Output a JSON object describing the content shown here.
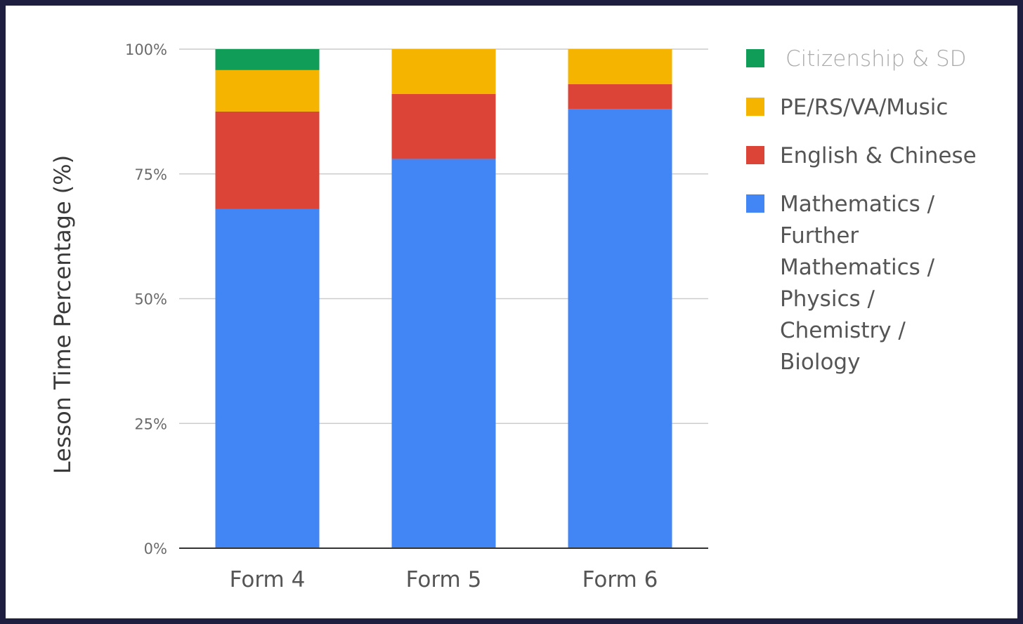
{
  "chart_data": {
    "type": "bar",
    "stacked": true,
    "title": "",
    "xlabel": "",
    "ylabel": "Lesson Time Percentage (%)",
    "ylim": [
      0,
      100
    ],
    "yticks": [
      0,
      25,
      50,
      75,
      100
    ],
    "ytick_labels": [
      "0%",
      "25%",
      "50%",
      "75%",
      "100%"
    ],
    "categories": [
      "Form 4",
      "Form 5",
      "Form 6"
    ],
    "grid": true,
    "legend_position": "right",
    "series": [
      {
        "name": "Mathematics / Further Mathematics / Physics / Chemistry / Biology",
        "color": "#4285f4",
        "values": [
          68,
          78,
          88
        ]
      },
      {
        "name": "English & Chinese",
        "color": "#db4437",
        "values": [
          19.5,
          13,
          5
        ]
      },
      {
        "name": "PE/RS/VA/Music",
        "color": "#f4b400",
        "values": [
          8.3,
          9,
          7
        ]
      },
      {
        "name": "Citizenship & SD",
        "color": "#0f9d58",
        "values": [
          4.2,
          0,
          0
        ]
      }
    ],
    "legend": [
      {
        "label": "Citizenship & SD",
        "color": "#0f9d58",
        "lines": [
          "Citizenship & SD"
        ],
        "light": true
      },
      {
        "label": "PE/RS/VA/Music",
        "color": "#f4b400",
        "lines": [
          "PE/RS/VA/Music"
        ]
      },
      {
        "label": "English & Chinese",
        "color": "#db4437",
        "lines": [
          "English & Chinese"
        ]
      },
      {
        "label": "Mathematics / Further Mathematics / Physics / Chemistry / Biology",
        "color": "#4285f4",
        "lines": [
          "Mathematics /",
          "Further",
          "Mathematics /",
          "Physics /",
          "Chemistry /",
          "Biology"
        ]
      }
    ]
  }
}
